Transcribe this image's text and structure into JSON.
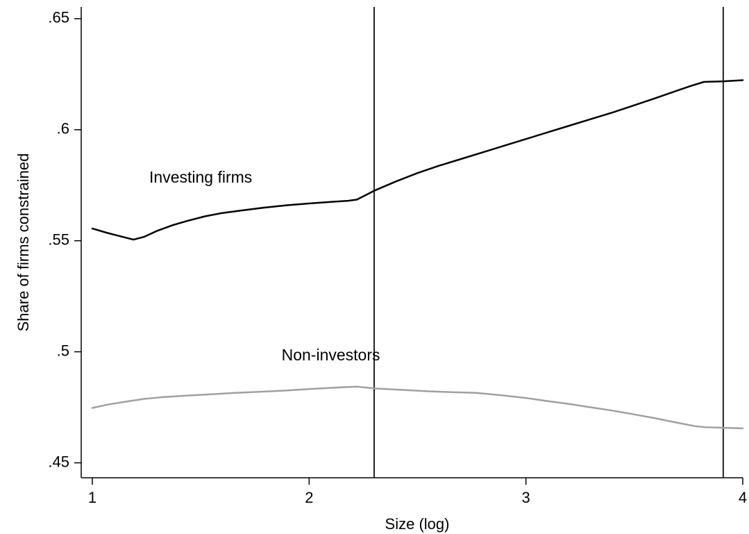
{
  "chart_data": {
    "type": "line",
    "title": "",
    "xlabel": "Size (log)",
    "ylabel": "Share of firms constrained",
    "xlim": [
      1,
      4
    ],
    "ylim": [
      0.45,
      0.655
    ],
    "x_ticks": [
      1,
      2,
      3,
      4
    ],
    "x_tick_labels": [
      "1",
      "2",
      "3",
      "4"
    ],
    "y_ticks": [
      0.45,
      0.5,
      0.55,
      0.6,
      0.65
    ],
    "y_tick_labels": [
      ".45",
      ".5",
      ".55",
      ".6",
      ".65"
    ],
    "grid": false,
    "legend": "none",
    "reference_lines_x": [
      2.3,
      3.91
    ],
    "series": [
      {
        "name": "Investing firms",
        "color": "#000000",
        "label_at": [
          1.5,
          0.578
        ],
        "x": [
          1.0,
          1.07,
          1.13,
          1.19,
          1.24,
          1.3,
          1.37,
          1.44,
          1.52,
          1.6,
          1.7,
          1.8,
          1.9,
          2.0,
          2.1,
          2.18,
          2.22,
          2.3,
          2.4,
          2.5,
          2.6,
          2.7,
          2.8,
          2.9,
          3.0,
          3.1,
          3.2,
          3.3,
          3.4,
          3.5,
          3.6,
          3.7,
          3.76,
          3.82,
          3.91,
          4.0
        ],
        "y": [
          0.5555,
          0.5535,
          0.552,
          0.5505,
          0.5518,
          0.5545,
          0.557,
          0.559,
          0.561,
          0.5625,
          0.5638,
          0.565,
          0.566,
          0.5668,
          0.5675,
          0.568,
          0.5685,
          0.5725,
          0.5767,
          0.5805,
          0.5838,
          0.5868,
          0.5898,
          0.5928,
          0.5958,
          0.5988,
          0.6018,
          0.6048,
          0.6078,
          0.611,
          0.6143,
          0.6177,
          0.6197,
          0.6215,
          0.6218,
          0.6223
        ]
      },
      {
        "name": "Non-investors",
        "color": "#a0a0a0",
        "label_at": [
          2.1,
          0.498
        ],
        "x": [
          1.0,
          1.07,
          1.15,
          1.24,
          1.33,
          1.44,
          1.55,
          1.66,
          1.77,
          1.88,
          2.0,
          2.11,
          2.22,
          2.3,
          2.44,
          2.55,
          2.66,
          2.77,
          2.88,
          3.0,
          3.1,
          3.2,
          3.3,
          3.4,
          3.5,
          3.6,
          3.7,
          3.78,
          3.83,
          3.91,
          4.0
        ],
        "y": [
          0.4747,
          0.4762,
          0.4775,
          0.4788,
          0.4796,
          0.4803,
          0.4809,
          0.4815,
          0.482,
          0.4825,
          0.4832,
          0.4838,
          0.4843,
          0.4835,
          0.4828,
          0.4822,
          0.4818,
          0.4815,
          0.4805,
          0.4792,
          0.4778,
          0.4765,
          0.475,
          0.4735,
          0.4718,
          0.47,
          0.468,
          0.4665,
          0.466,
          0.4658,
          0.4655
        ]
      }
    ]
  }
}
